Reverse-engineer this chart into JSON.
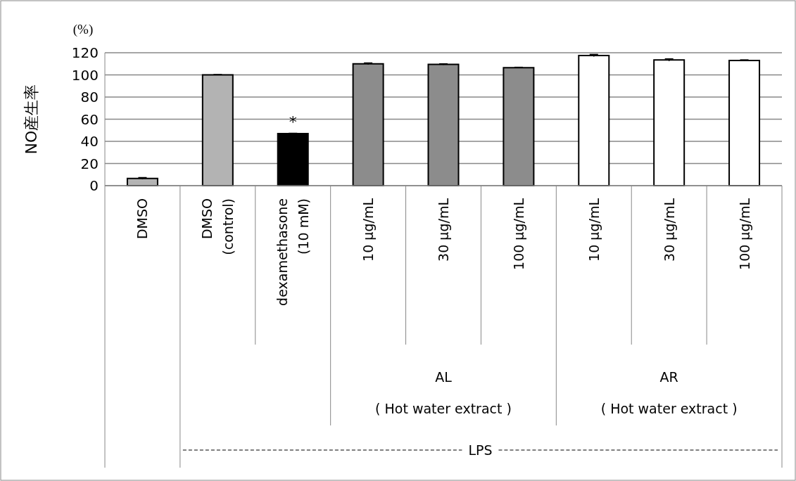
{
  "chart_data": {
    "type": "bar",
    "ylabel": "NO産生率",
    "categories": [
      "DMSO",
      "DMSO (control)",
      "dexamethasone (10 mM)",
      "10 μg/mL",
      "30 μg/mL",
      "100 μg/mL",
      "10 μg/mL",
      "30 μg/mL",
      "100 μg/mL"
    ],
    "values": [
      6.5,
      100,
      47,
      110,
      109.5,
      106.5,
      117.5,
      113.5,
      113
    ],
    "errors": [
      0.8,
      0.3,
      0.3,
      0.8,
      0.5,
      0.4,
      1,
      1,
      0.6
    ],
    "colors": [
      "#b3b3b3",
      "#b3b3b3",
      "#000000",
      "#8c8c8c",
      "#8c8c8c",
      "#8c8c8c",
      "#ffffff",
      "#ffffff",
      "#ffffff"
    ],
    "ylim": [
      0,
      120
    ],
    "yticks": [
      0,
      20,
      40,
      60,
      80,
      100,
      120
    ],
    "grid": "y",
    "annotations": [
      "(%)",
      {
        "text": "*",
        "x": "dexamethasone (10 mM)",
        "y": 47
      },
      "AL\n( Hot water extract )",
      "AR\n( Hot water extract )",
      "LPS"
    ]
  }
}
